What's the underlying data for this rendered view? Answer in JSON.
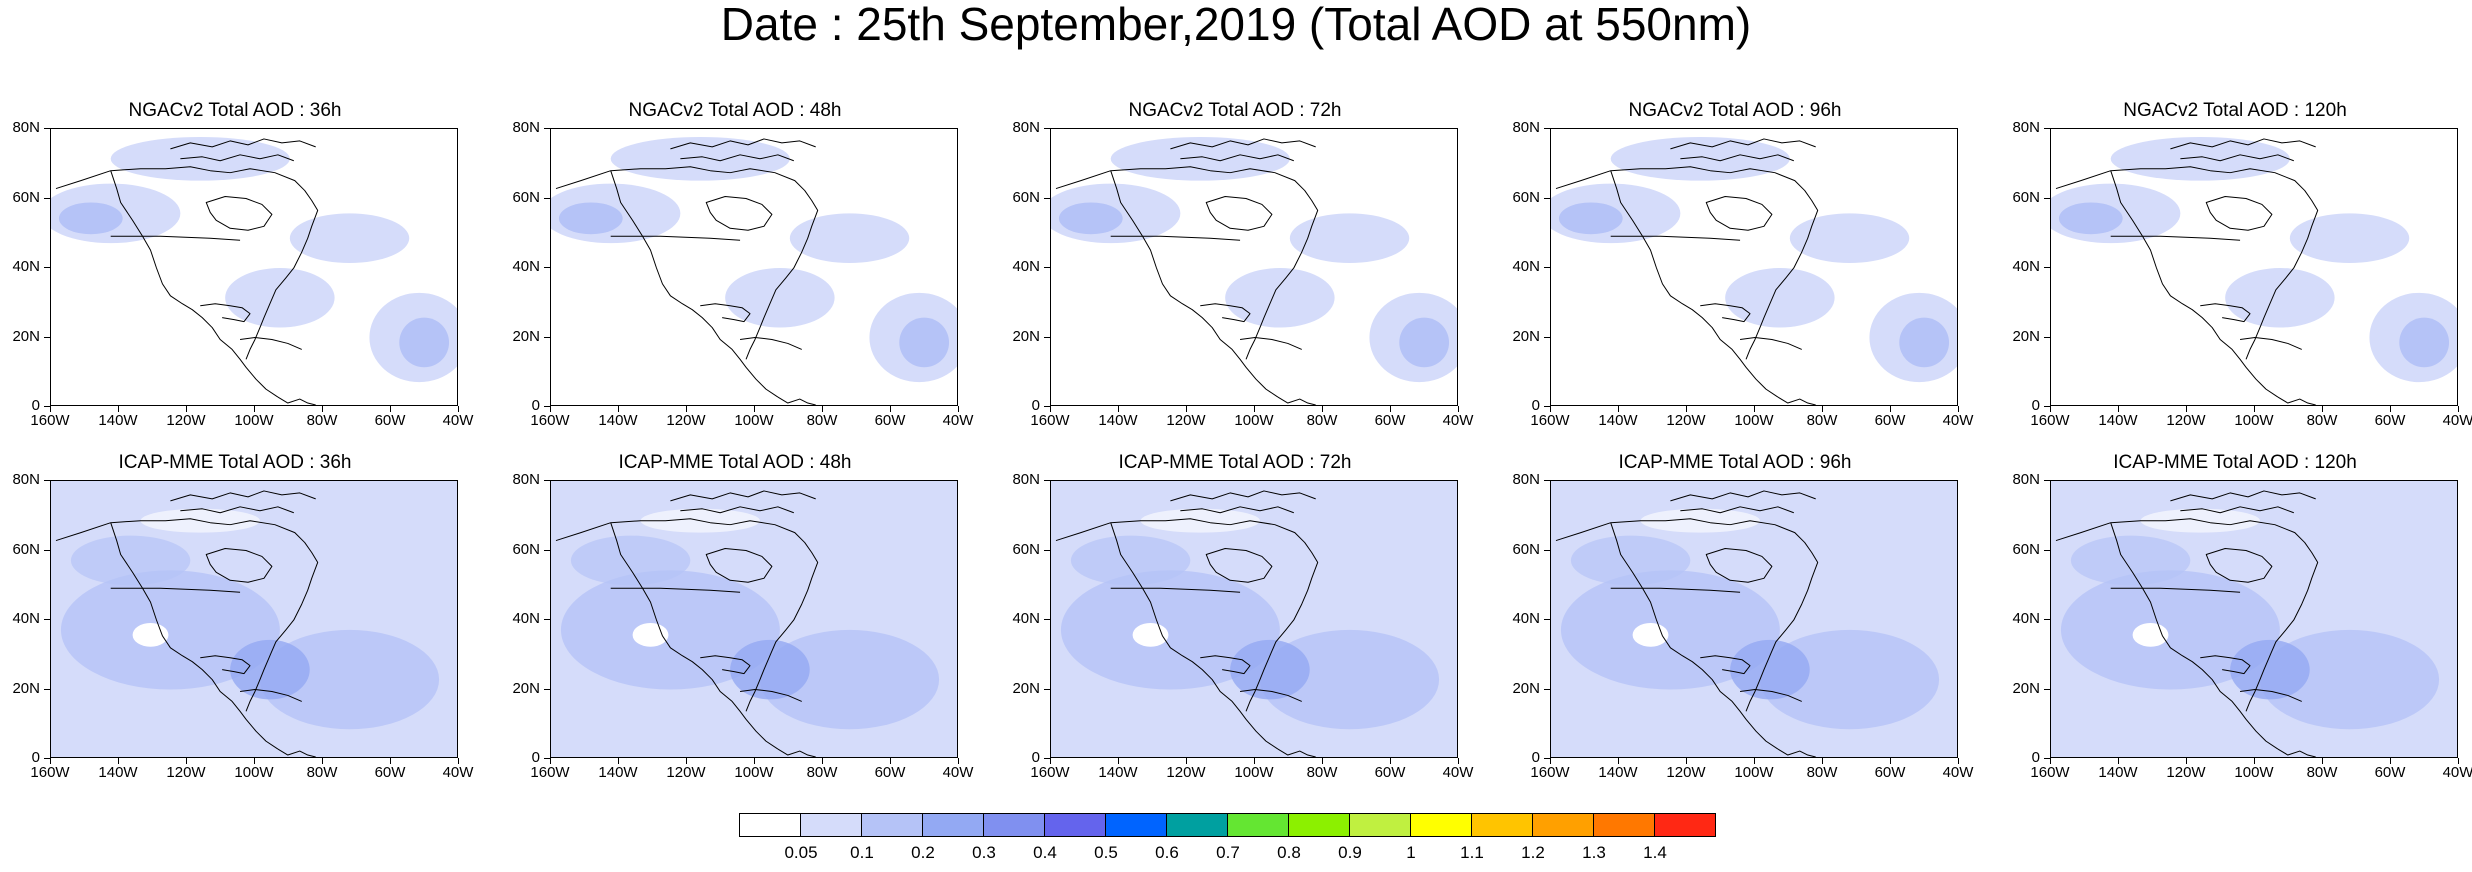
{
  "title": "Date : 25th September,2019 (Total AOD at 550nm)",
  "panels": [
    {
      "title": "NGACv2 Total AOD : 36h",
      "intensity": 1
    },
    {
      "title": "NGACv2 Total AOD : 48h",
      "intensity": 1
    },
    {
      "title": "NGACv2 Total AOD : 72h",
      "intensity": 1
    },
    {
      "title": "NGACv2 Total AOD : 96h",
      "intensity": 1
    },
    {
      "title": "NGACv2 Total AOD : 120h",
      "intensity": 1
    },
    {
      "title": "ICAP-MME Total AOD : 36h",
      "intensity": 2
    },
    {
      "title": "ICAP-MME Total AOD : 48h",
      "intensity": 2
    },
    {
      "title": "ICAP-MME Total AOD : 72h",
      "intensity": 2
    },
    {
      "title": "ICAP-MME Total AOD : 96h",
      "intensity": 2
    },
    {
      "title": "ICAP-MME Total AOD : 120h",
      "intensity": 2
    }
  ],
  "axes": {
    "lat_labels": [
      "80N",
      "60N",
      "40N",
      "20N",
      "0"
    ],
    "lon_labels": [
      "160W",
      "140W",
      "120W",
      "100W",
      "80W",
      "60W",
      "40W"
    ]
  },
  "colorbar": {
    "colors": [
      "#ffffff",
      "#d5dcfa",
      "#b5c3f7",
      "#93a9f3",
      "#8090f0",
      "#6464ed",
      "#0064ff",
      "#00a0a0",
      "#64e632",
      "#8cf000",
      "#c0f040",
      "#ffff00",
      "#ffc400",
      "#ffa000",
      "#ff7800",
      "#ff2814"
    ],
    "labels": [
      "0.05",
      "0.1",
      "0.2",
      "0.3",
      "0.4",
      "0.5",
      "0.6",
      "0.7",
      "0.8",
      "0.9",
      "1",
      "1.1",
      "1.2",
      "1.3",
      "1.4"
    ]
  }
}
